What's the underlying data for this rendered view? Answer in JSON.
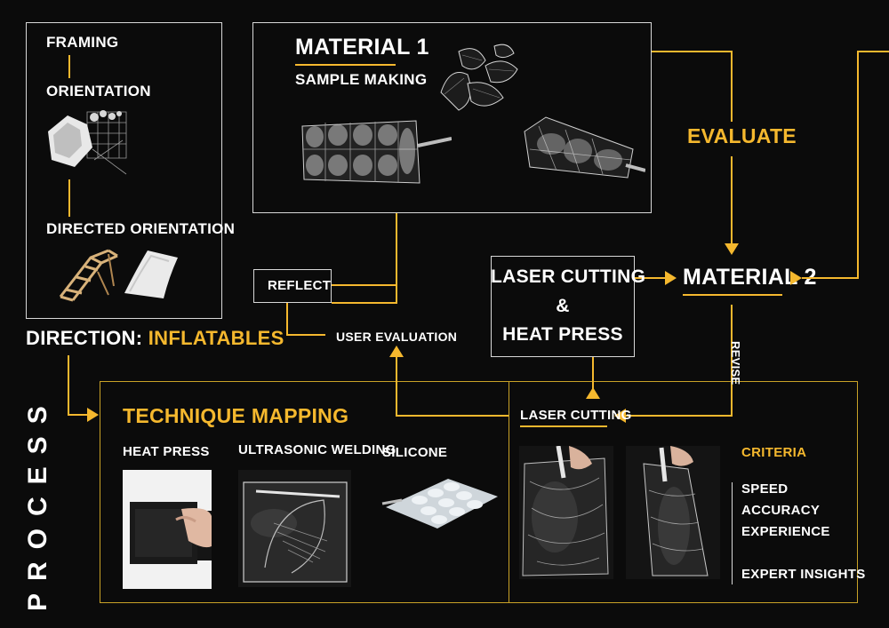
{
  "framing": {
    "framing": "FRAMING",
    "orientation": "ORIENTATION",
    "directed_orientation": "DIRECTED ORIENTATION"
  },
  "direction": {
    "prefix": "DIRECTION:",
    "value": "INFLATABLES"
  },
  "material1": {
    "title": "MATERIAL 1",
    "subtitle": "SAMPLE MAKING"
  },
  "evaluate": "EVALUATE",
  "material2": "MATERIAL 2",
  "revise": "REVISE",
  "reflect": "REFLECT",
  "user_evaluation": "USER EVALUATION",
  "laser_heat": {
    "line1": "LASER CUTTING",
    "line2": "&",
    "line3": "HEAT PRESS"
  },
  "process": "PROCESS",
  "technique": {
    "title": "TECHNIQUE MAPPING",
    "heat_press": "HEAT PRESS",
    "ultrasonic": "ULTRASONIC WELDING",
    "silicone": "SILICONE"
  },
  "laser_section": {
    "title": "LASER CUTTING",
    "criteria_title": "CRITERIA",
    "criteria": [
      "SPEED",
      "ACCURACY",
      "EXPERIENCE"
    ],
    "expert": "EXPERT INSIGHTS"
  },
  "colors": {
    "accent": "#f5b82e",
    "background": "#0b0b0b",
    "text": "#ffffff"
  }
}
